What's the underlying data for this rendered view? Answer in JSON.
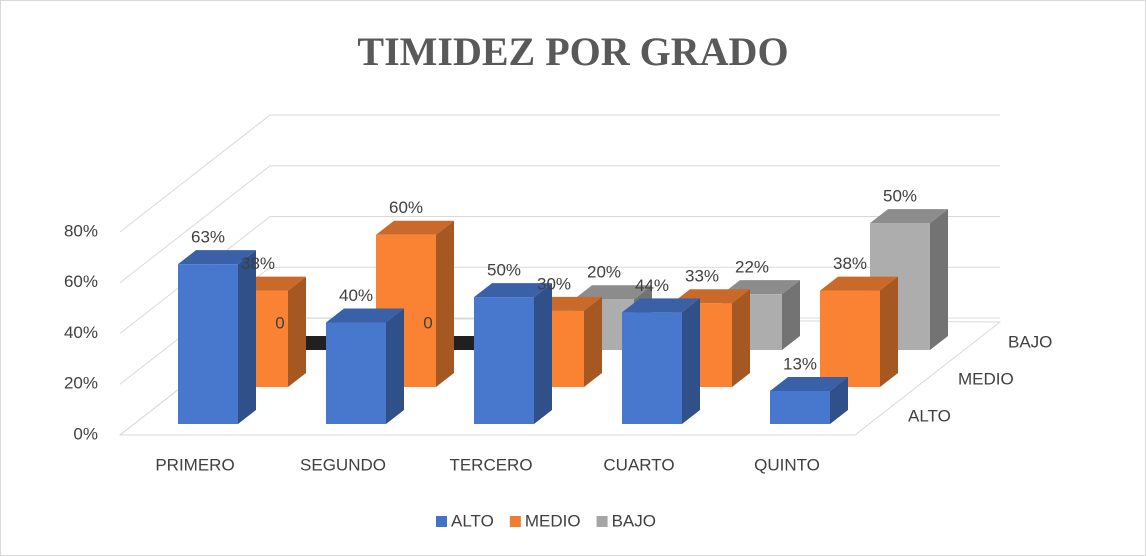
{
  "chart_data": {
    "type": "bar3d",
    "title": "TIMIDEZ POR GRADO",
    "categories": [
      "PRIMERO",
      "SEGUNDO",
      "TERCERO",
      "CUARTO",
      "QUINTO"
    ],
    "series": [
      {
        "name": "ALTO",
        "color": "#4472c4",
        "values": [
          63,
          40,
          50,
          44,
          13
        ],
        "value_labels": [
          "63%",
          "40%",
          "50%",
          "44%",
          "13%"
        ]
      },
      {
        "name": "MEDIO",
        "color": "#ed7d31",
        "values": [
          38,
          60,
          30,
          33,
          38
        ],
        "value_labels": [
          "38%",
          "60%",
          "30%",
          "33%",
          "38%"
        ]
      },
      {
        "name": "BAJO",
        "color": "#a5a5a5",
        "values": [
          0,
          0,
          20,
          22,
          50
        ],
        "value_labels": [
          "0",
          "0",
          "20%",
          "22%",
          "50%"
        ]
      }
    ],
    "ylim": [
      0,
      80
    ],
    "yticks": [
      {
        "value": 0,
        "label": "0%"
      },
      {
        "value": 20,
        "label": "20%"
      },
      {
        "value": 40,
        "label": "40%"
      },
      {
        "value": 60,
        "label": "60%"
      },
      {
        "value": 80,
        "label": "80%"
      }
    ],
    "grid": true,
    "legend": "bottom"
  }
}
